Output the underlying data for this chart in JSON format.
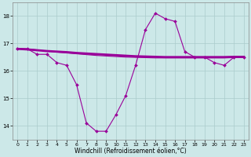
{
  "xlabel": "Windchill (Refroidissement éolien,°C)",
  "bg_color": "#cce8e8",
  "line_color": "#990099",
  "grid_color": "#aacccc",
  "x_data": [
    0,
    1,
    2,
    3,
    4,
    5,
    6,
    7,
    8,
    9,
    10,
    11,
    12,
    13,
    14,
    15,
    16,
    17,
    18,
    19,
    20,
    21,
    22,
    23
  ],
  "y_windchill": [
    16.8,
    16.8,
    16.6,
    16.6,
    16.3,
    16.2,
    15.5,
    14.1,
    13.8,
    13.8,
    14.4,
    15.1,
    16.2,
    17.5,
    18.1,
    17.9,
    17.8,
    16.7,
    16.5,
    16.5,
    16.3,
    16.2,
    16.5,
    16.5
  ],
  "y_trend_thick": [
    16.8,
    16.78,
    16.75,
    16.72,
    16.7,
    16.68,
    16.65,
    16.63,
    16.61,
    16.59,
    16.57,
    16.55,
    16.53,
    16.52,
    16.51,
    16.5,
    16.5,
    16.5,
    16.5,
    16.5,
    16.5,
    16.5,
    16.51,
    16.51
  ],
  "y_trend_thin": [
    16.82,
    16.8,
    16.76,
    16.72,
    16.68,
    16.65,
    16.62,
    16.59,
    16.56,
    16.54,
    16.52,
    16.5,
    16.49,
    16.48,
    16.47,
    16.47,
    16.47,
    16.47,
    16.47,
    16.47,
    16.47,
    16.47,
    16.48,
    16.48
  ],
  "ylim": [
    13.5,
    18.5
  ],
  "xlim": [
    -0.5,
    23.5
  ],
  "yticks": [
    14,
    15,
    16,
    17,
    18
  ],
  "xticks": [
    0,
    1,
    2,
    3,
    4,
    5,
    6,
    7,
    8,
    9,
    10,
    11,
    12,
    13,
    14,
    15,
    16,
    17,
    18,
    19,
    20,
    21,
    22,
    23
  ],
  "tick_fontsize": 4.5,
  "xlabel_fontsize": 5.5,
  "marker": "D",
  "marker_size": 2.0,
  "linewidth": 0.8,
  "trend_thick_lw": 2.0,
  "trend_thin_lw": 0.8
}
